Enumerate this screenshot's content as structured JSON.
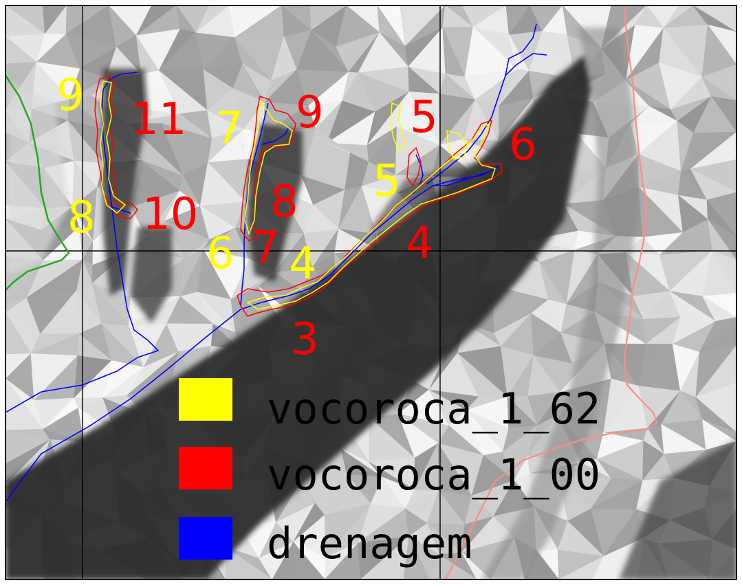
{
  "map": {
    "colors": {
      "yellow_layer": "#ffff00",
      "red_layer": "#ff0000",
      "blue_layer": "#0000ff",
      "green_line": "#22aa22",
      "pink_line": "#ff8c8c",
      "grid": "#000000"
    },
    "labels_yellow": [
      "9",
      "7",
      "8",
      "6",
      "5",
      "4"
    ],
    "labels_red": [
      "11",
      "9",
      "5",
      "6",
      "10",
      "8",
      "7",
      "4",
      "3"
    ]
  },
  "legend": {
    "items": [
      {
        "label": "vocoroca_1_62",
        "color": "#ffff00"
      },
      {
        "label": "vocoroca_1_00",
        "color": "#ff0000"
      },
      {
        "label": "drenagem",
        "color": "#0000ff"
      }
    ]
  }
}
